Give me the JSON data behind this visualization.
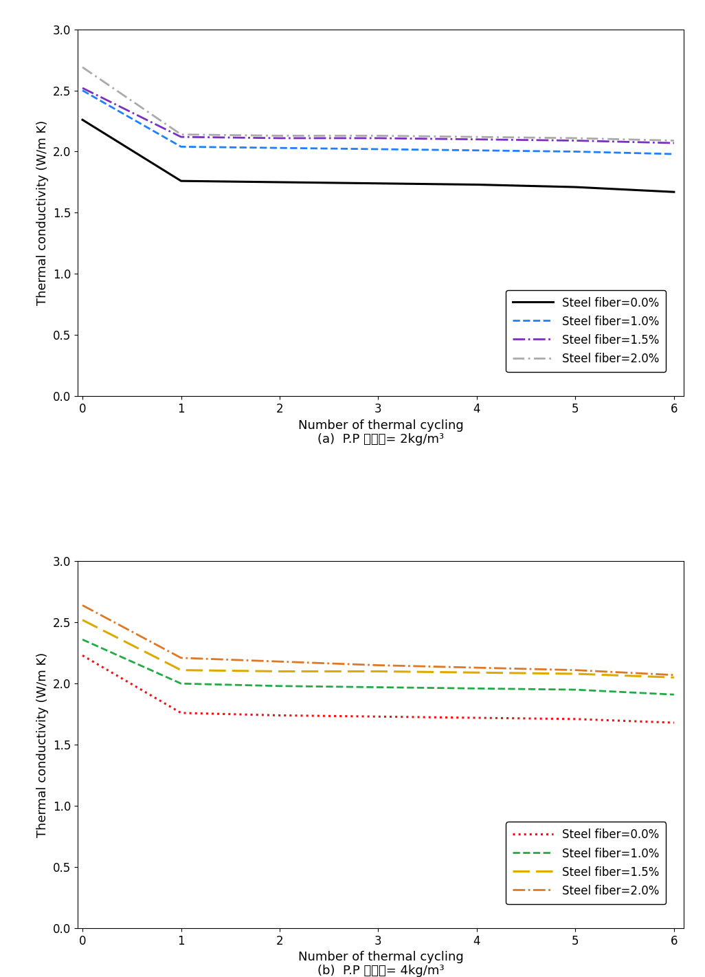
{
  "x": [
    0,
    1,
    2,
    3,
    4,
    5,
    6
  ],
  "subplot_a": {
    "label": "(a)  P.P 섬유량= 2kg/m³",
    "series": [
      {
        "label": "Steel fiber=0.0%",
        "color": "#000000",
        "linestyle": "solid",
        "linewidth": 2.2,
        "values": [
          2.26,
          1.76,
          1.75,
          1.74,
          1.73,
          1.71,
          1.67
        ]
      },
      {
        "label": "Steel fiber=1.0%",
        "color": "#1e7fff",
        "linestyle": "dashed",
        "linewidth": 2.0,
        "values": [
          2.5,
          2.04,
          2.03,
          2.02,
          2.01,
          2.0,
          1.98
        ]
      },
      {
        "label": "Steel fiber=1.5%",
        "color": "#7b2fbe",
        "linestyle": "dashdot",
        "linewidth": 2.0,
        "values": [
          2.52,
          2.12,
          2.11,
          2.11,
          2.1,
          2.09,
          2.07
        ]
      },
      {
        "label": "Steel fiber=2.0%",
        "color": "#aaaaaa",
        "linestyle": "dashdot",
        "linewidth": 2.0,
        "values": [
          2.69,
          2.14,
          2.13,
          2.13,
          2.12,
          2.11,
          2.09
        ]
      }
    ]
  },
  "subplot_b": {
    "label": "(b)  P.P 섬유량= 4kg/m³",
    "series": [
      {
        "label": "Steel fiber=0.0%",
        "color": "#ee1111",
        "linestyle": "dotted",
        "linewidth": 2.2,
        "values": [
          2.23,
          1.76,
          1.74,
          1.73,
          1.72,
          1.71,
          1.68
        ]
      },
      {
        "label": "Steel fiber=1.0%",
        "color": "#22aa44",
        "linestyle": "dashed",
        "linewidth": 2.0,
        "values": [
          2.36,
          2.0,
          1.98,
          1.97,
          1.96,
          1.95,
          1.91
        ]
      },
      {
        "label": "Steel fiber=1.5%",
        "color": "#ddaa00",
        "linestyle": "dashed",
        "linewidth": 2.2,
        "values": [
          2.52,
          2.11,
          2.1,
          2.1,
          2.09,
          2.08,
          2.05
        ]
      },
      {
        "label": "Steel fiber=2.0%",
        "color": "#e07722",
        "linestyle": "dashdot",
        "linewidth": 2.0,
        "values": [
          2.64,
          2.21,
          2.18,
          2.15,
          2.13,
          2.11,
          2.07
        ]
      }
    ]
  },
  "ylabel": "Thermal conductivity (W/m K)",
  "xlabel": "Number of thermal cycling",
  "ylim": [
    0.0,
    3.0
  ],
  "yticks": [
    0.0,
    0.5,
    1.0,
    1.5,
    2.0,
    2.5,
    3.0
  ],
  "xticks": [
    0,
    1,
    2,
    3,
    4,
    5,
    6
  ],
  "background_color": "#ffffff",
  "fontsize_label": 13,
  "fontsize_tick": 12,
  "fontsize_legend": 12,
  "fontsize_caption": 13
}
